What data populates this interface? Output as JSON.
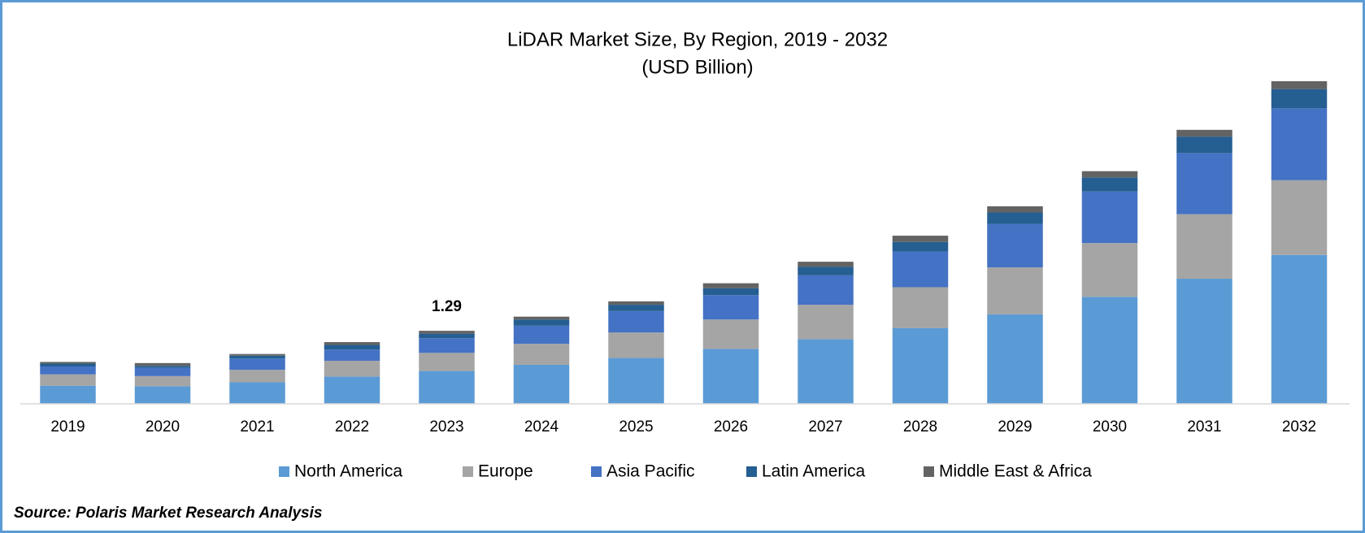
{
  "chart_data": {
    "type": "stacked_bar",
    "title": "LiDAR Market Size, By Region, 2019 - 2032",
    "subtitle": "(USD Billion)",
    "source": "Source: Polaris Market Research Analysis",
    "categories": [
      "2019",
      "2020",
      "2021",
      "2022",
      "2023",
      "2024",
      "2025",
      "2026",
      "2027",
      "2028",
      "2029",
      "2030",
      "2031",
      "2032"
    ],
    "series": [
      {
        "name": "North America",
        "color": "#5b9bd5",
        "values": [
          0.32,
          0.31,
          0.38,
          0.48,
          0.58,
          0.69,
          0.81,
          0.97,
          1.14,
          1.34,
          1.58,
          1.89,
          2.21,
          2.63
        ]
      },
      {
        "name": "Europe",
        "color": "#a5a5a5",
        "values": [
          0.2,
          0.18,
          0.22,
          0.28,
          0.32,
          0.37,
          0.45,
          0.52,
          0.61,
          0.72,
          0.83,
          0.95,
          1.14,
          1.32
        ]
      },
      {
        "name": "Asia Pacific",
        "color": "#4472c4",
        "values": [
          0.14,
          0.15,
          0.2,
          0.2,
          0.26,
          0.32,
          0.38,
          0.43,
          0.52,
          0.63,
          0.77,
          0.91,
          1.08,
          1.27
        ]
      },
      {
        "name": "Latin America",
        "color": "#255e91",
        "values": [
          0.05,
          0.03,
          0.05,
          0.08,
          0.08,
          0.11,
          0.11,
          0.12,
          0.15,
          0.17,
          0.2,
          0.25,
          0.29,
          0.34
        ]
      },
      {
        "name": "Middle East & Africa",
        "color": "#636363",
        "values": [
          0.03,
          0.05,
          0.03,
          0.05,
          0.05,
          0.05,
          0.06,
          0.09,
          0.09,
          0.11,
          0.11,
          0.11,
          0.12,
          0.14
        ]
      }
    ],
    "annotations": [
      {
        "category": "2023",
        "value": 1.29
      }
    ],
    "ylim": [
      0,
      6
    ],
    "legend": "bottom"
  }
}
